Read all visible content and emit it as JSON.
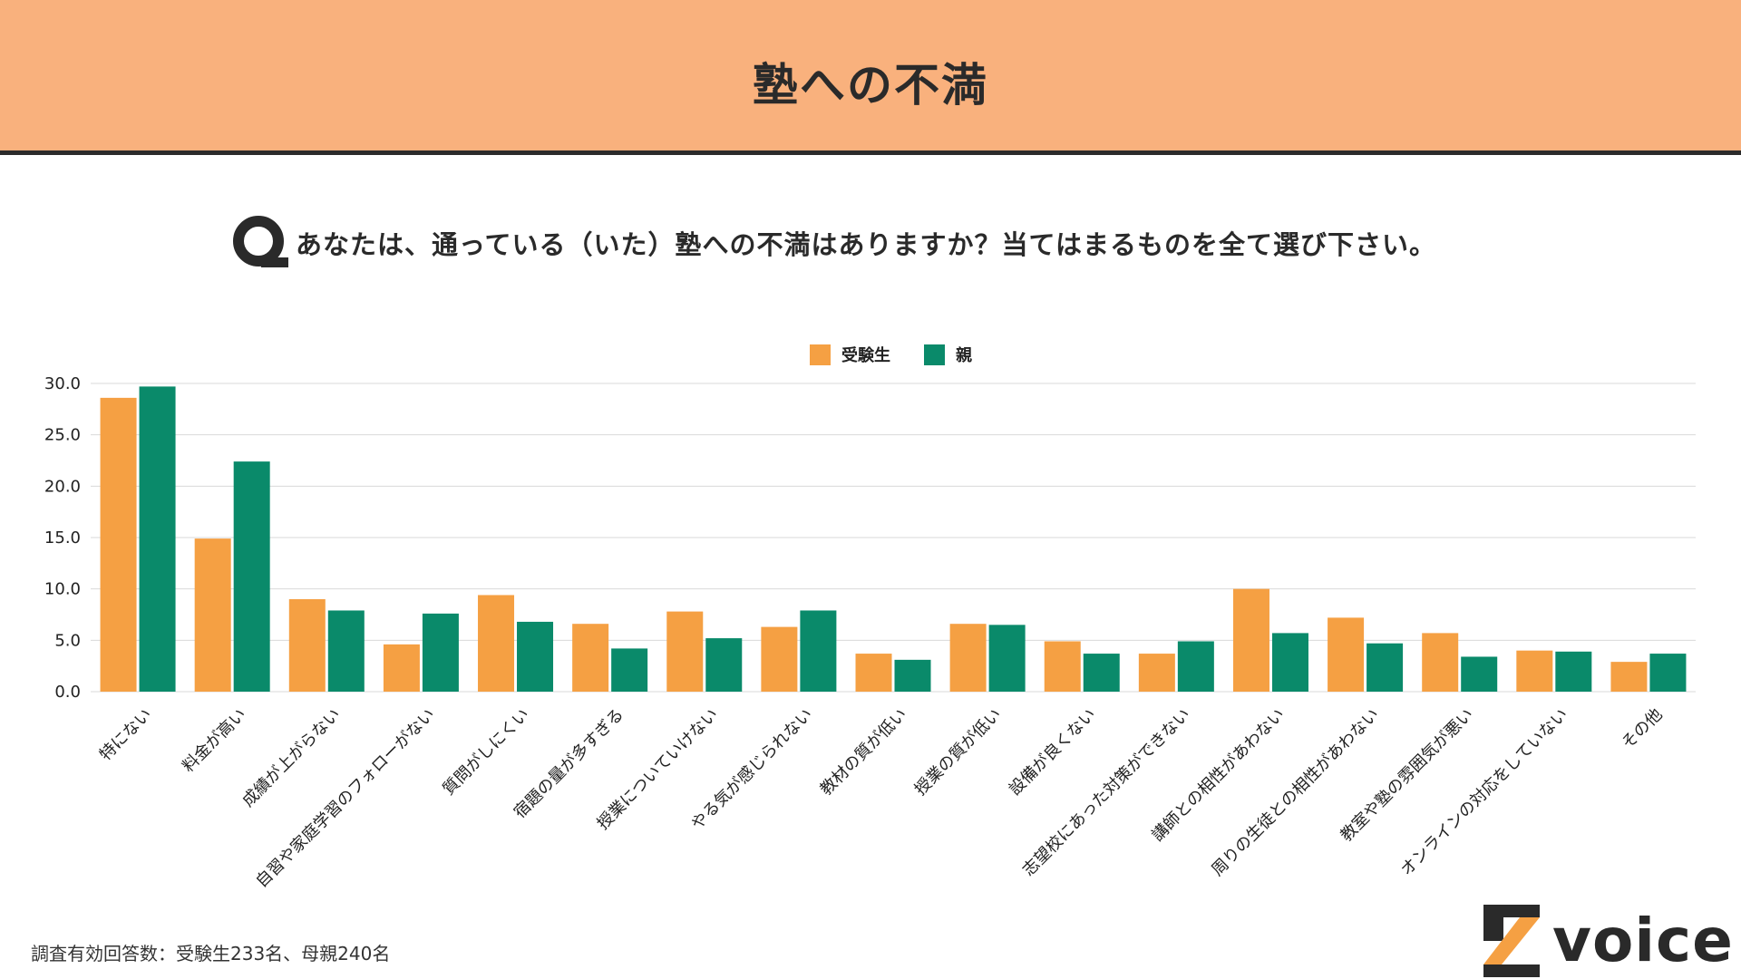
{
  "header": {
    "title": "塾への不満"
  },
  "question": {
    "icon": "q-icon",
    "text": "あなたは、通っている（いた）塾への不満はありますか？当てはまるものを全て選び下さい。"
  },
  "chart_data": {
    "type": "bar",
    "categories": [
      "特にない",
      "料金が高い",
      "成績が上がらない",
      "自習や家庭学習のフォローがない",
      "質問がしにくい",
      "宿題の量が多すぎる",
      "授業についていけない",
      "やる気が感じられない",
      "教材の質が低い",
      "授業の質が低い",
      "設備が良くない",
      "志望校にあった対策ができない",
      "講師との相性があわない",
      "周りの生徒との相性があわない",
      "教室や塾の雰囲気が悪い",
      "オンラインの対応をしていない",
      "その他"
    ],
    "series": [
      {
        "name": "受験生",
        "color": "#f5a043",
        "values": [
          28.6,
          14.9,
          9.0,
          4.6,
          9.4,
          6.6,
          7.8,
          6.3,
          3.7,
          6.6,
          4.9,
          3.7,
          10.0,
          7.2,
          5.7,
          4.0,
          2.9
        ]
      },
      {
        "name": "親",
        "color": "#0a8a6a",
        "values": [
          29.7,
          22.4,
          7.9,
          7.6,
          6.8,
          4.2,
          5.2,
          7.9,
          3.1,
          6.5,
          3.7,
          4.9,
          5.7,
          4.7,
          3.4,
          3.9,
          3.7
        ]
      }
    ],
    "y_ticks": [
      "0.0",
      "5.0",
      "10.0",
      "15.0",
      "20.0",
      "25.0",
      "30.0"
    ],
    "ylim": [
      0,
      30
    ],
    "grid": true,
    "legend_position": "top-center"
  },
  "footnote": "調査有効回答数：受験生233名、母親240名",
  "logo": {
    "text": "voice",
    "icon": "z-logo-icon"
  }
}
